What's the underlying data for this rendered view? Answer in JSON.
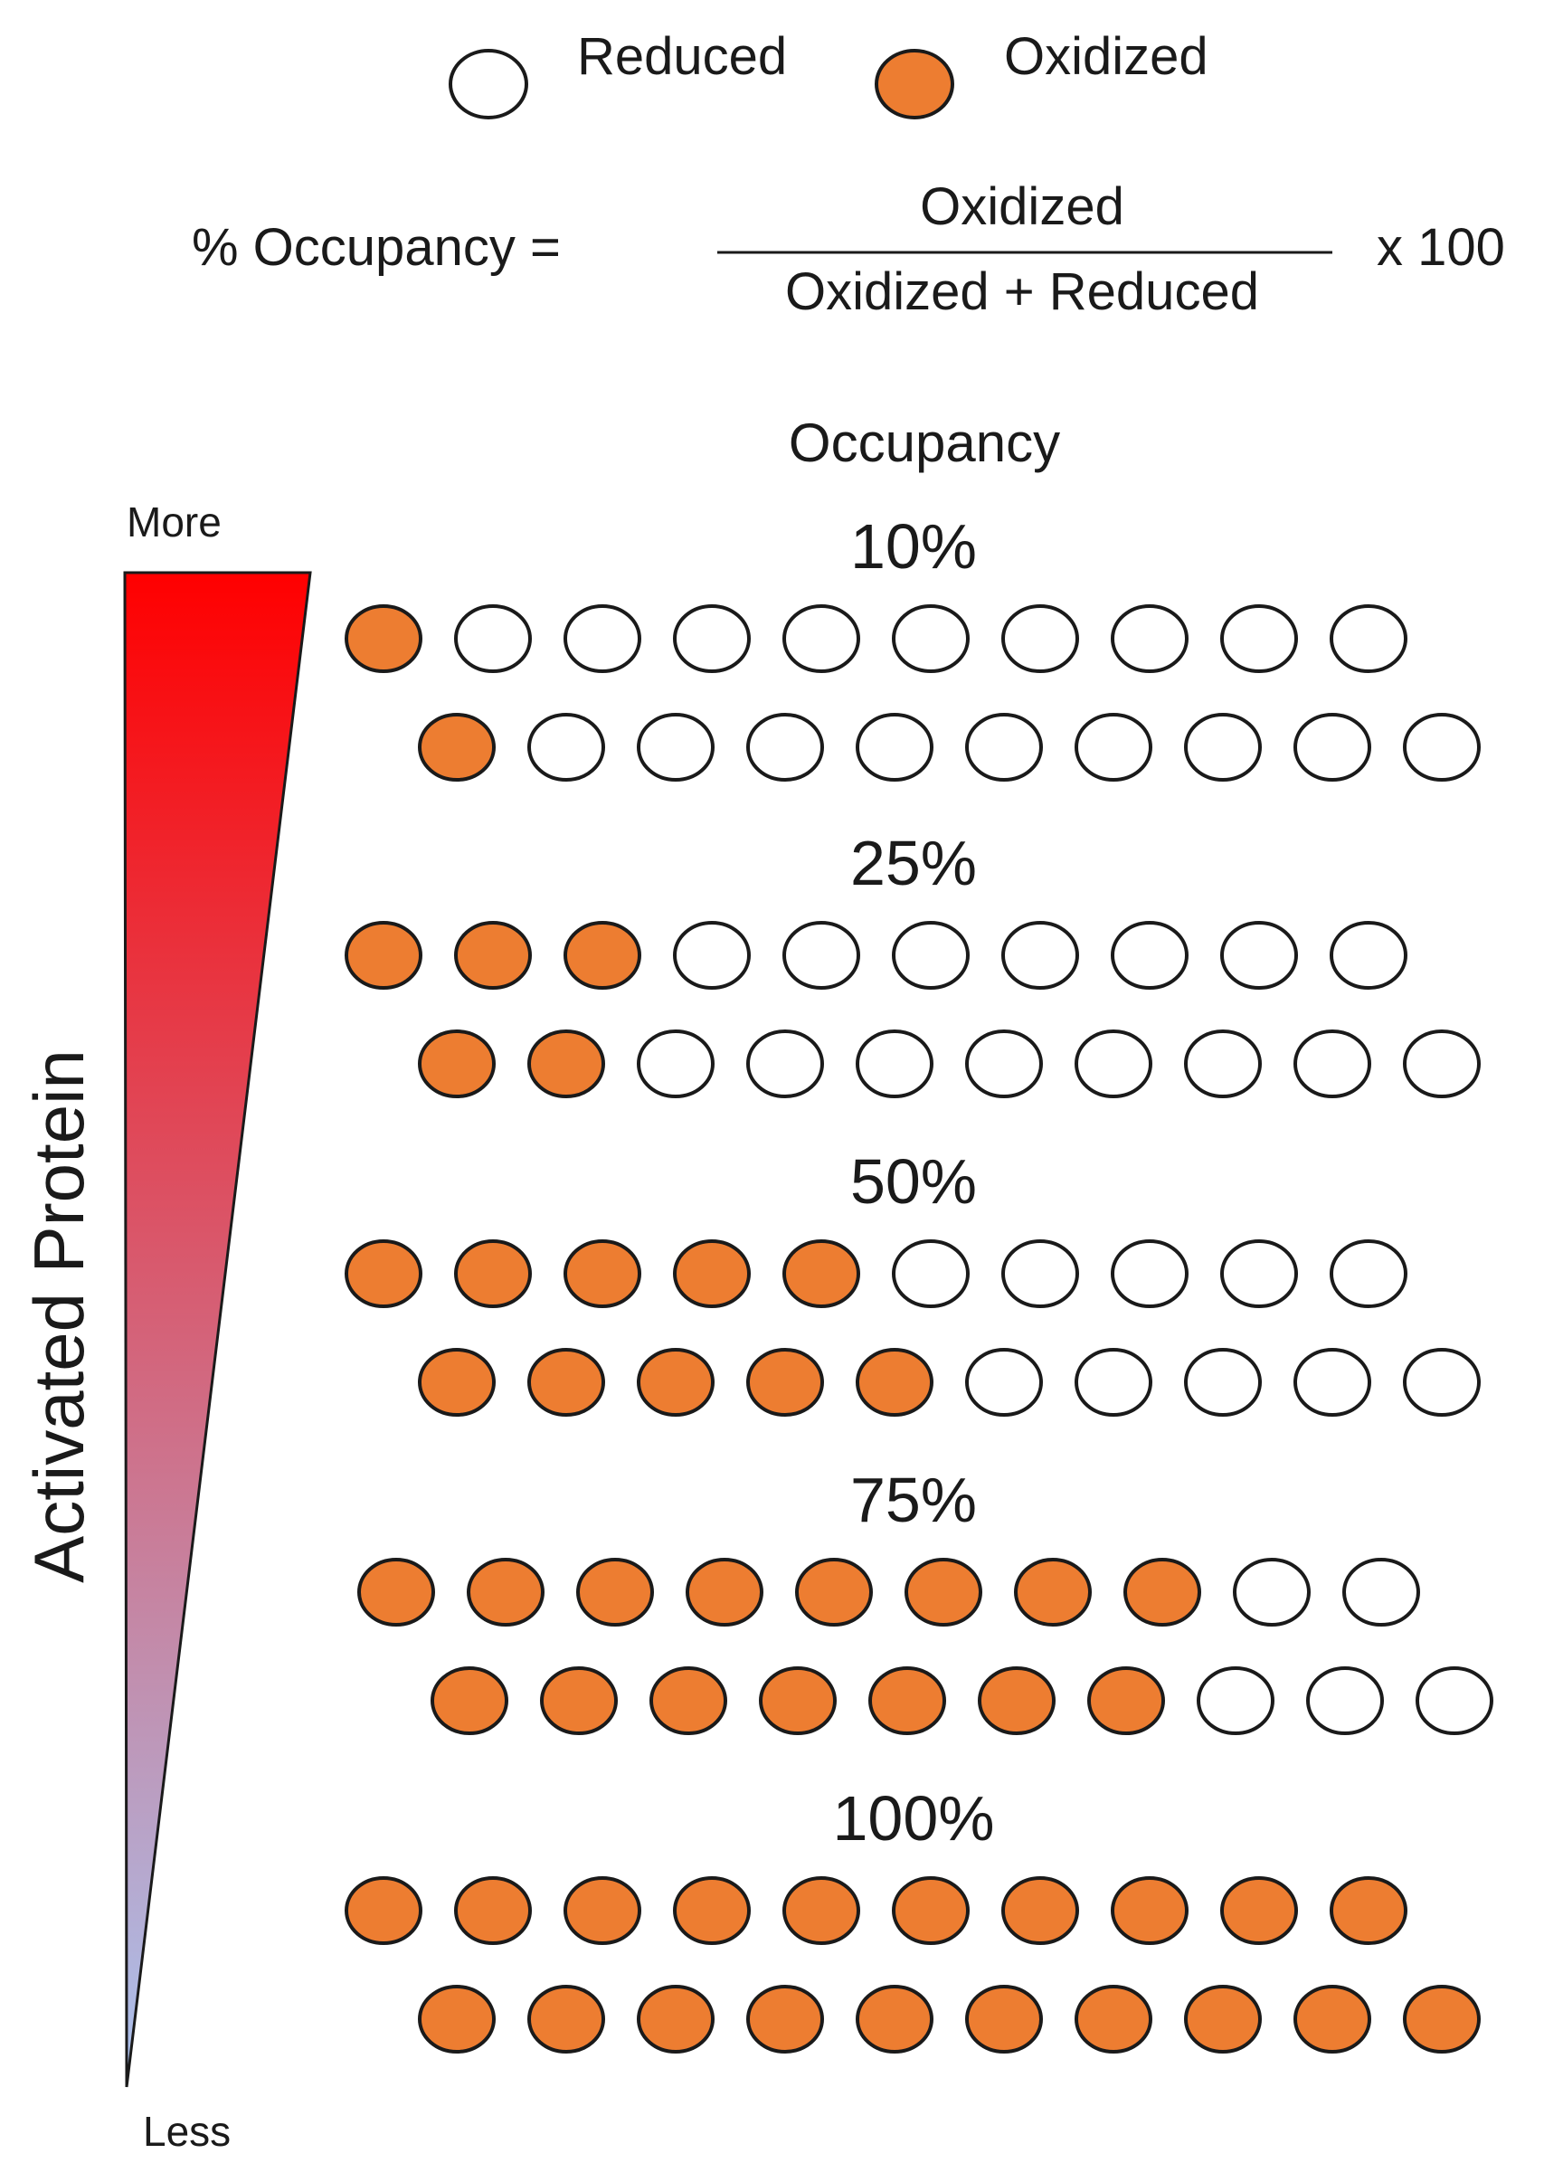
{
  "legend": {
    "reduced_label": "Reduced",
    "oxidized_label": "Oxidized"
  },
  "formula": {
    "lhs": "% Occupancy =",
    "numerator": "Oxidized",
    "denominator": "Oxidized + Reduced",
    "multiplier": "x 100"
  },
  "occupancy_heading": "Occupancy",
  "scale": {
    "top_label": "More",
    "bottom_label": "Less",
    "axis_label": "Activated Protein"
  },
  "colors": {
    "oxidized": "#ed7d31",
    "reduced": "#ffffff",
    "outline": "#1a1a1a",
    "gradient_top": "#ff0000",
    "gradient_bottom": "#aac4f0"
  },
  "levels": [
    {
      "label": "10%",
      "rows": [
        {
          "oxidized": 1,
          "total": 10
        },
        {
          "oxidized": 1,
          "total": 10
        }
      ]
    },
    {
      "label": "25%",
      "rows": [
        {
          "oxidized": 3,
          "total": 10
        },
        {
          "oxidized": 2,
          "total": 10
        }
      ]
    },
    {
      "label": "50%",
      "rows": [
        {
          "oxidized": 5,
          "total": 10
        },
        {
          "oxidized": 5,
          "total": 10
        }
      ]
    },
    {
      "label": "75%",
      "rows": [
        {
          "oxidized": 8,
          "total": 10
        },
        {
          "oxidized": 7,
          "total": 10
        }
      ]
    },
    {
      "label": "100%",
      "rows": [
        {
          "oxidized": 10,
          "total": 10
        },
        {
          "oxidized": 10,
          "total": 10
        }
      ]
    }
  ]
}
